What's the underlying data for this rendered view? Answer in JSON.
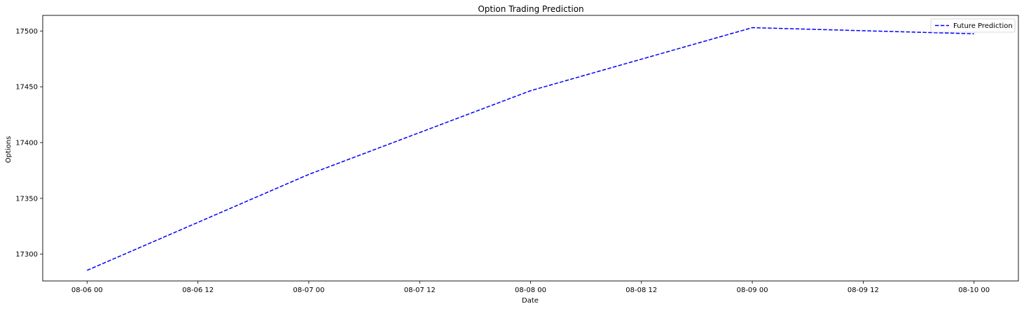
{
  "chart_data": {
    "type": "line",
    "title": "Option Trading Prediction",
    "xlabel": "Date",
    "ylabel": "Options",
    "x_ticks": [
      "08-06 00",
      "08-06 12",
      "08-07 00",
      "08-07 12",
      "08-08 00",
      "08-08 12",
      "08-09 00",
      "08-09 12",
      "08-10 00"
    ],
    "y_ticks": [
      17300,
      17350,
      17400,
      17450,
      17500
    ],
    "ylim": [
      17276,
      17514
    ],
    "xlim_hours": [
      -4.8,
      100.8
    ],
    "grid": false,
    "legend_position": "top-right",
    "series": [
      {
        "name": "Future Prediction",
        "color": "#0000ff",
        "line_style": "dashed",
        "x": [
          "08-06 00",
          "08-07 00",
          "08-08 00",
          "08-09 00",
          "08-10 00"
        ],
        "x_hours": [
          0,
          24,
          48,
          72,
          96
        ],
        "y": [
          17285.5,
          17371.5,
          17446.5,
          17503.0,
          17497.5
        ]
      }
    ]
  }
}
